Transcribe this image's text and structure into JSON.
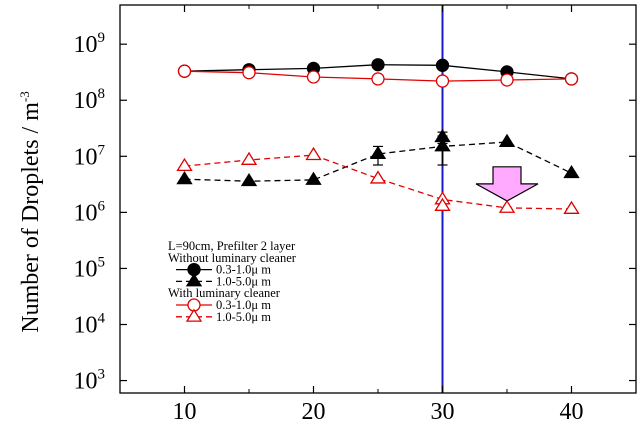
{
  "chart_data": {
    "type": "line",
    "title": "",
    "xlabel": "",
    "ylabel": "Number of Droplets / m",
    "ylabel_superscript": "-3",
    "xlim": [
      5,
      45
    ],
    "ylim": [
      600,
      5000000000
    ],
    "yscale": "log",
    "grid": false,
    "x_ticks": [
      10,
      20,
      30,
      40
    ],
    "x_tick_labels": [
      "10",
      "20",
      "30",
      "40"
    ],
    "y_ticks": [
      {
        "value": 1000,
        "base": "10",
        "exp": "3"
      },
      {
        "value": 10000,
        "base": "10",
        "exp": "4"
      },
      {
        "value": 100000,
        "base": "10",
        "exp": "5"
      },
      {
        "value": 1000000,
        "base": "10",
        "exp": "6"
      },
      {
        "value": 10000000,
        "base": "10",
        "exp": "7"
      },
      {
        "value": 100000000,
        "base": "10",
        "exp": "8"
      },
      {
        "value": 1000000000,
        "base": "10",
        "exp": "9"
      }
    ],
    "legend": {
      "placement": "bottom-left",
      "lines": [
        {
          "text": "L=90cm, Prefilter 2 layer"
        },
        {
          "text": "Without luminary cleaner"
        },
        {
          "text": "0.3-1.0μ m",
          "series": 0
        },
        {
          "text": "1.0-5.0μ m",
          "series": 1
        },
        {
          "text": "With luminary cleaner"
        },
        {
          "text": "0.3-1.0μ m",
          "series": 2
        },
        {
          "text": "1.0-5.0μ m",
          "series": 3
        }
      ]
    },
    "series": [
      {
        "color": "#000000",
        "dash": false,
        "marker": "circle",
        "filled": true,
        "x": [
          10,
          15,
          20,
          25,
          30,
          35,
          40
        ],
        "y": [
          330000000,
          350000000,
          370000000,
          430000000,
          420000000,
          320000000,
          240000000
        ]
      },
      {
        "color": "#000000",
        "dash": true,
        "marker": "triangle",
        "filled": true,
        "x": [
          10,
          15,
          20,
          25,
          30,
          30,
          35,
          40
        ],
        "y": [
          3900000,
          3600000,
          3800000,
          11000000,
          15000000,
          22000000,
          18000000,
          5000000
        ],
        "err": [
          0,
          0,
          0,
          4000000,
          8000000,
          5000000,
          0,
          0
        ]
      },
      {
        "color": "#e00000",
        "dash": false,
        "marker": "circle",
        "filled": false,
        "x": [
          10,
          15,
          20,
          25,
          30,
          35,
          40
        ],
        "y": [
          330000000,
          310000000,
          260000000,
          240000000,
          220000000,
          230000000,
          240000000
        ]
      },
      {
        "color": "#e00000",
        "dash": true,
        "marker": "triangle",
        "filled": false,
        "x": [
          10,
          15,
          20,
          25,
          30,
          30,
          35,
          40
        ],
        "y": [
          6700000,
          8600000,
          10500000,
          4000000,
          1700000,
          1300000,
          1200000,
          1150000
        ]
      }
    ],
    "vertical_line": {
      "x": 30,
      "color": "#1a1acc"
    },
    "arrow": {
      "x": 35,
      "y_top": 6500000,
      "y_bottom": 1600000,
      "fill": "#ffaaff",
      "direction": "down"
    }
  }
}
